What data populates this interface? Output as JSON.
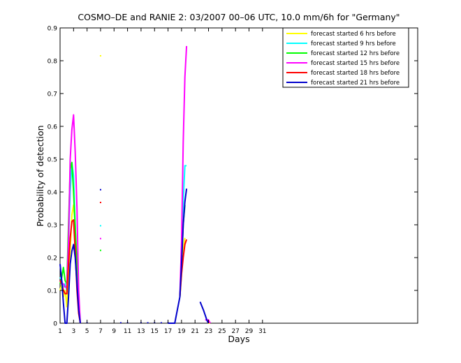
{
  "chart_data": {
    "type": "line",
    "title": "COSMO–DE and RANIE 2: 03/2007 00–06 UTC, 10.0 mm/6h for \"Germany\"",
    "xlabel": "Days",
    "ylabel": "Probability of detection",
    "xlim": [
      1,
      54
    ],
    "ylim": [
      0,
      0.9
    ],
    "xticks": [
      1,
      3,
      5,
      7,
      9,
      11,
      13,
      15,
      17,
      19,
      21,
      23,
      25,
      27,
      29,
      31
    ],
    "yticks": [
      0,
      0.1,
      0.2,
      0.3,
      0.4,
      0.5,
      0.6,
      0.7,
      0.8,
      0.9
    ],
    "grid": false,
    "legend_position": "top-right",
    "series": [
      {
        "name": "forecast started 6 hrs before",
        "color": "#ffff00",
        "segments": [
          [
            [
              1,
              0.1
            ],
            [
              1.25,
              0.12
            ],
            [
              1.5,
              0.08
            ],
            [
              1.75,
              0.1
            ],
            [
              2,
              0.05
            ],
            [
              2.25,
              0.14
            ],
            [
              2.5,
              0.22
            ],
            [
              2.75,
              0.33
            ],
            [
              3,
              0.36
            ],
            [
              3.25,
              0.3
            ],
            [
              3.5,
              0.15
            ],
            [
              3.75,
              0.05
            ],
            [
              4,
              0.0
            ]
          ],
          [
            [
              7,
              0.815
            ]
          ],
          [
            [
              18.75,
              0.08
            ],
            [
              19,
              0.15
            ],
            [
              19.25,
              0.22
            ],
            [
              19.5,
              0.26
            ]
          ],
          [
            [
              22.75,
              0.01
            ],
            [
              23,
              0.0
            ],
            [
              23.25,
              0.0
            ]
          ]
        ]
      },
      {
        "name": "forecast started 9 hrs before",
        "color": "#00ffff",
        "segments": [
          [
            [
              1,
              0.14
            ],
            [
              1.25,
              0.13
            ],
            [
              1.5,
              0.11
            ],
            [
              1.75,
              0.12
            ],
            [
              2,
              0.1
            ],
            [
              2.25,
              0.25
            ],
            [
              2.5,
              0.4
            ],
            [
              2.75,
              0.49
            ],
            [
              3,
              0.45
            ],
            [
              3.25,
              0.3
            ],
            [
              3.5,
              0.12
            ],
            [
              3.75,
              0.04
            ],
            [
              4,
              0.0
            ]
          ],
          [
            [
              7,
              0.297
            ]
          ],
          [
            [
              18.75,
              0.08
            ],
            [
              19,
              0.2
            ],
            [
              19.25,
              0.37
            ],
            [
              19.5,
              0.48
            ],
            [
              19.75,
              0.48
            ]
          ],
          [
            [
              22.75,
              0.01
            ],
            [
              23,
              0.0
            ]
          ]
        ]
      },
      {
        "name": "forecast started 12 hrs before",
        "color": "#00ff00",
        "segments": [
          [
            [
              1,
              0.12
            ],
            [
              1.25,
              0.14
            ],
            [
              1.5,
              0.17
            ],
            [
              1.75,
              0.13
            ],
            [
              2,
              0.12
            ],
            [
              2.25,
              0.3
            ],
            [
              2.5,
              0.47
            ],
            [
              2.75,
              0.49
            ],
            [
              3,
              0.4
            ],
            [
              3.25,
              0.29
            ],
            [
              3.5,
              0.18
            ],
            [
              3.75,
              0.06
            ],
            [
              4,
              0.0
            ]
          ],
          [
            [
              7,
              0.222
            ]
          ],
          [
            [
              18.75,
              0.08
            ],
            [
              19,
              0.18
            ],
            [
              19.25,
              0.3
            ],
            [
              19.5,
              0.36
            ]
          ],
          [
            [
              22.75,
              0.01
            ],
            [
              23,
              0.0
            ]
          ]
        ]
      },
      {
        "name": "forecast started 15 hrs before",
        "color": "#ff00ff",
        "segments": [
          [
            [
              1,
              0.13
            ],
            [
              1.25,
              0.12
            ],
            [
              1.5,
              0.12
            ],
            [
              1.75,
              0.11
            ],
            [
              2,
              0.11
            ],
            [
              2.25,
              0.25
            ],
            [
              2.5,
              0.5
            ],
            [
              2.75,
              0.59
            ],
            [
              3,
              0.635
            ],
            [
              3.25,
              0.52
            ],
            [
              3.5,
              0.35
            ],
            [
              3.75,
              0.1
            ],
            [
              4,
              0.0
            ]
          ],
          [
            [
              7,
              0.258
            ]
          ],
          [
            [
              18.75,
              0.08
            ],
            [
              19,
              0.25
            ],
            [
              19.25,
              0.55
            ],
            [
              19.5,
              0.75
            ],
            [
              19.75,
              0.845
            ]
          ],
          [
            [
              22.5,
              0.01
            ],
            [
              23,
              0.01
            ],
            [
              23.25,
              0.0
            ]
          ]
        ]
      },
      {
        "name": "forecast started 18 hrs before",
        "color": "#ff0000",
        "segments": [
          [
            [
              1,
              0.13
            ],
            [
              1.25,
              0.12
            ],
            [
              1.5,
              0.1
            ],
            [
              1.75,
              0.09
            ],
            [
              2,
              0.09
            ],
            [
              2.25,
              0.18
            ],
            [
              2.5,
              0.26
            ],
            [
              2.75,
              0.31
            ],
            [
              3,
              0.315
            ],
            [
              3.25,
              0.22
            ],
            [
              3.5,
              0.1
            ],
            [
              3.75,
              0.03
            ],
            [
              4,
              0.0
            ]
          ],
          [
            [
              7,
              0.368
            ]
          ],
          [
            [
              18.75,
              0.08
            ],
            [
              19,
              0.15
            ],
            [
              19.25,
              0.2
            ],
            [
              19.5,
              0.24
            ],
            [
              19.75,
              0.255
            ]
          ],
          [
            [
              22.75,
              0.01
            ],
            [
              23,
              0.0
            ]
          ]
        ]
      },
      {
        "name": "forecast started 21 hrs before",
        "color": "#0000cc",
        "segments": [
          [
            [
              1,
              0.18
            ],
            [
              1.25,
              0.13
            ],
            [
              1.5,
              0.06
            ],
            [
              1.75,
              0.0
            ],
            [
              2,
              0.0
            ],
            [
              2.25,
              0.08
            ],
            [
              2.5,
              0.18
            ],
            [
              2.75,
              0.22
            ],
            [
              3,
              0.24
            ],
            [
              3.25,
              0.2
            ],
            [
              3.5,
              0.12
            ],
            [
              3.75,
              0.04
            ],
            [
              4,
              0.0
            ]
          ],
          [
            [
              7,
              0.407
            ]
          ],
          [
            [
              17,
              0.0
            ],
            [
              17.5,
              0.0
            ],
            [
              18,
              0.0
            ],
            [
              18.75,
              0.08
            ],
            [
              19,
              0.18
            ],
            [
              19.25,
              0.3
            ],
            [
              19.5,
              0.37
            ],
            [
              19.75,
              0.41
            ]
          ],
          [
            [
              21.75,
              0.065
            ],
            [
              22.25,
              0.04
            ],
            [
              22.75,
              0.01
            ],
            [
              23,
              0.0
            ]
          ]
        ]
      }
    ],
    "zero_markers": [
      {
        "x": 5,
        "color": "#0000cc"
      },
      {
        "x": 10,
        "color": "#0000cc"
      },
      {
        "x": 11,
        "color": "#0000cc"
      },
      {
        "x": 13,
        "color": "#0000cc"
      },
      {
        "x": 14,
        "color": "#0000cc"
      },
      {
        "x": 15,
        "color": "#0000cc"
      },
      {
        "x": 16,
        "color": "#0000cc"
      },
      {
        "x": 17,
        "color": "#0000cc"
      }
    ]
  }
}
